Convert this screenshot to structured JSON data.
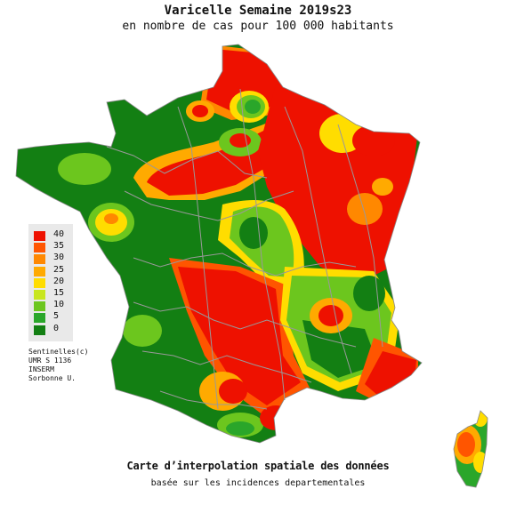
{
  "header": {
    "title": "Varicelle Semaine 2019s23",
    "subtitle": "en nombre de cas pour 100 000 habitants"
  },
  "legend": {
    "items": [
      {
        "label": "40",
        "color": "#ee1100"
      },
      {
        "label": "35",
        "color": "#ff5500"
      },
      {
        "label": "30",
        "color": "#ff8800"
      },
      {
        "label": "25",
        "color": "#ffaa00"
      },
      {
        "label": "20",
        "color": "#ffdd00"
      },
      {
        "label": "15",
        "color": "#c8e61e"
      },
      {
        "label": "10",
        "color": "#6cc61e"
      },
      {
        "label": "5",
        "color": "#2aa62a"
      },
      {
        "label": "0",
        "color": "#137f13"
      }
    ]
  },
  "credits": [
    "Sentinelles(c)",
    "UMR S 1136",
    "INSERM",
    "Sorbonne U."
  ],
  "footer": {
    "line1": "Carte d’interpolation spatiale des données",
    "line2": "basée sur les incidences departementales"
  },
  "colors": {
    "high": "#ee1100",
    "mid_high": "#ff5500",
    "mid": "#ffaa00",
    "low_mid": "#ffdd00",
    "low": "#6cc61e",
    "lowest": "#137f13",
    "border": "#999999"
  }
}
